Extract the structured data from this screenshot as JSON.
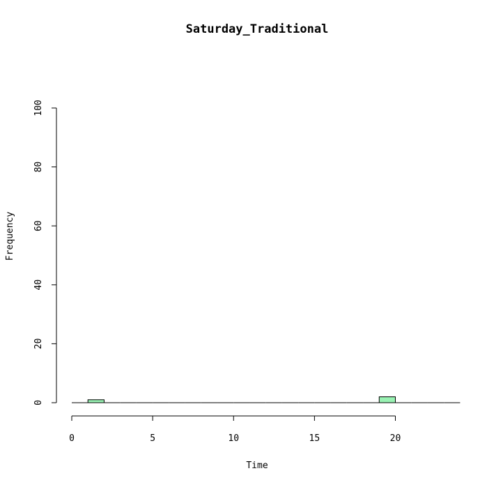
{
  "chart_data": {
    "type": "bar",
    "title": "Saturday_Traditional",
    "xlabel": "Time",
    "ylabel": "Frequency",
    "xlim": [
      0,
      24
    ],
    "ylim": [
      0,
      100
    ],
    "x_ticks": [
      0,
      5,
      10,
      15,
      20
    ],
    "y_ticks": [
      0,
      20,
      40,
      60,
      80,
      100
    ],
    "bin_width": 1,
    "bins": [
      {
        "start": 0,
        "end": 1,
        "count": 0
      },
      {
        "start": 1,
        "end": 2,
        "count": 1
      },
      {
        "start": 2,
        "end": 3,
        "count": 0
      },
      {
        "start": 3,
        "end": 4,
        "count": 0
      },
      {
        "start": 4,
        "end": 5,
        "count": 0
      },
      {
        "start": 5,
        "end": 6,
        "count": 0
      },
      {
        "start": 6,
        "end": 7,
        "count": 0
      },
      {
        "start": 7,
        "end": 8,
        "count": 0
      },
      {
        "start": 8,
        "end": 9,
        "count": 0
      },
      {
        "start": 9,
        "end": 10,
        "count": 0
      },
      {
        "start": 10,
        "end": 11,
        "count": 0
      },
      {
        "start": 11,
        "end": 12,
        "count": 0
      },
      {
        "start": 12,
        "end": 13,
        "count": 0
      },
      {
        "start": 13,
        "end": 14,
        "count": 0
      },
      {
        "start": 14,
        "end": 15,
        "count": 0
      },
      {
        "start": 15,
        "end": 16,
        "count": 0
      },
      {
        "start": 16,
        "end": 17,
        "count": 0
      },
      {
        "start": 17,
        "end": 18,
        "count": 0
      },
      {
        "start": 18,
        "end": 19,
        "count": 0
      },
      {
        "start": 19,
        "end": 20,
        "count": 2
      },
      {
        "start": 20,
        "end": 21,
        "count": 0
      },
      {
        "start": 21,
        "end": 22,
        "count": 0
      },
      {
        "start": 22,
        "end": 23,
        "count": 0
      },
      {
        "start": 23,
        "end": 24,
        "count": 0
      }
    ],
    "bar_color": "#99f2b3",
    "grid": false,
    "legend": "none"
  }
}
